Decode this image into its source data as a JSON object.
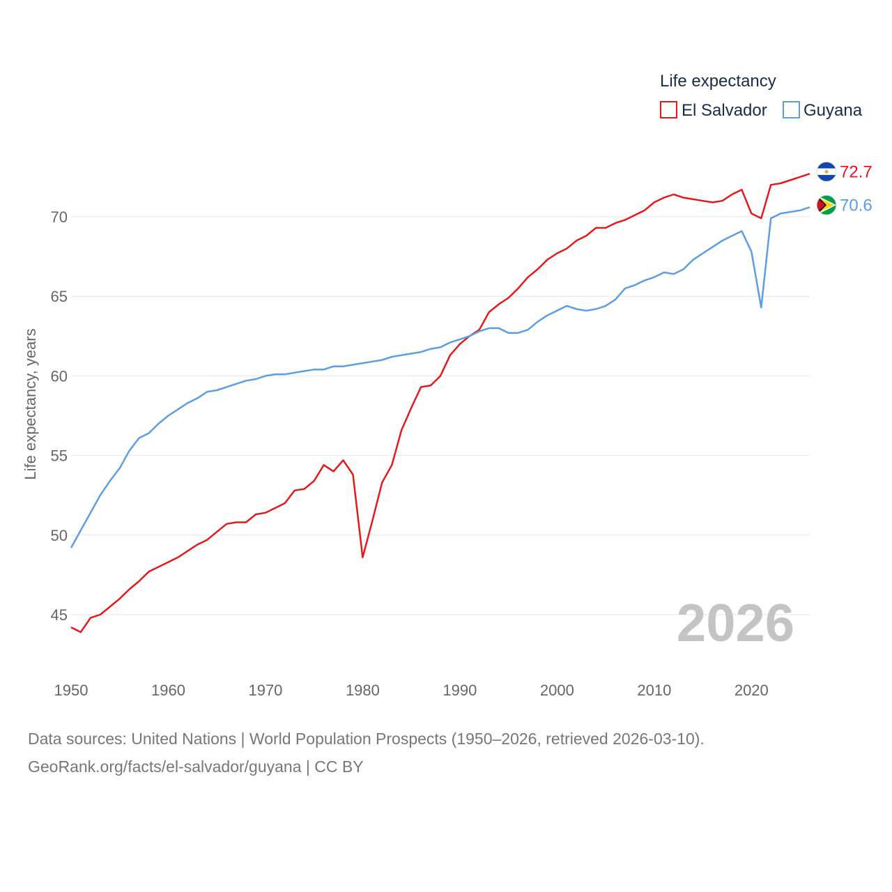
{
  "chart_data": {
    "type": "line",
    "title": "",
    "legend_title": "Life expectancy",
    "ylabel": "Life expectancy, years",
    "xlabel": "",
    "xlim": [
      1950,
      2026
    ],
    "ylim": [
      42.5,
      73.5
    ],
    "x_ticks": [
      1950,
      1960,
      1970,
      1980,
      1990,
      2000,
      2010,
      2020
    ],
    "y_ticks": [
      45,
      50,
      55,
      60,
      65,
      70
    ],
    "year_label": "2026",
    "series": [
      {
        "name": "El Salvador",
        "color": "#e31a1c",
        "end_label": "72.7",
        "flag": "el-salvador-flag-icon",
        "x": [
          1950,
          1951,
          1952,
          1953,
          1954,
          1955,
          1956,
          1957,
          1958,
          1959,
          1960,
          1961,
          1962,
          1963,
          1964,
          1965,
          1966,
          1967,
          1968,
          1969,
          1970,
          1971,
          1972,
          1973,
          1974,
          1975,
          1976,
          1977,
          1978,
          1979,
          1980,
          1981,
          1982,
          1983,
          1984,
          1985,
          1986,
          1987,
          1988,
          1989,
          1990,
          1991,
          1992,
          1993,
          1994,
          1995,
          1996,
          1997,
          1998,
          1999,
          2000,
          2001,
          2002,
          2003,
          2004,
          2005,
          2006,
          2007,
          2008,
          2009,
          2010,
          2011,
          2012,
          2013,
          2014,
          2015,
          2016,
          2017,
          2018,
          2019,
          2020,
          2021,
          2022,
          2023,
          2024,
          2025,
          2026
        ],
        "values": [
          44.2,
          43.9,
          44.8,
          45.0,
          45.5,
          46.0,
          46.6,
          47.1,
          47.7,
          48.0,
          48.3,
          48.6,
          49.0,
          49.4,
          49.7,
          50.2,
          50.7,
          50.8,
          50.8,
          51.3,
          51.4,
          51.7,
          52.0,
          52.8,
          52.9,
          53.4,
          54.4,
          54.0,
          54.7,
          53.8,
          48.6,
          50.9,
          53.3,
          54.4,
          56.6,
          58.0,
          59.3,
          59.4,
          60.0,
          61.3,
          62.0,
          62.5,
          62.9,
          64.0,
          64.5,
          64.9,
          65.5,
          66.2,
          66.7,
          67.3,
          67.7,
          68.0,
          68.5,
          68.8,
          69.3,
          69.3,
          69.6,
          69.8,
          70.1,
          70.4,
          70.9,
          71.2,
          71.4,
          71.2,
          71.1,
          71.0,
          70.9,
          71.0,
          71.4,
          71.7,
          70.2,
          69.9,
          72.0,
          72.1,
          72.3,
          72.5,
          72.7
        ]
      },
      {
        "name": "Guyana",
        "color": "#5b9ee1",
        "end_label": "70.6",
        "flag": "guyana-flag-icon",
        "x": [
          1950,
          1951,
          1952,
          1953,
          1954,
          1955,
          1956,
          1957,
          1958,
          1959,
          1960,
          1961,
          1962,
          1963,
          1964,
          1965,
          1966,
          1967,
          1968,
          1969,
          1970,
          1971,
          1972,
          1973,
          1974,
          1975,
          1976,
          1977,
          1978,
          1979,
          1980,
          1981,
          1982,
          1983,
          1984,
          1985,
          1986,
          1987,
          1988,
          1989,
          1990,
          1991,
          1992,
          1993,
          1994,
          1995,
          1996,
          1997,
          1998,
          1999,
          2000,
          2001,
          2002,
          2003,
          2004,
          2005,
          2006,
          2007,
          2008,
          2009,
          2010,
          2011,
          2012,
          2013,
          2014,
          2015,
          2016,
          2017,
          2018,
          2019,
          2020,
          2021,
          2022,
          2023,
          2024,
          2025,
          2026
        ],
        "values": [
          49.2,
          50.3,
          51.4,
          52.5,
          53.4,
          54.2,
          55.3,
          56.1,
          56.4,
          57.0,
          57.5,
          57.9,
          58.3,
          58.6,
          59.0,
          59.1,
          59.3,
          59.5,
          59.7,
          59.8,
          60.0,
          60.1,
          60.1,
          60.2,
          60.3,
          60.4,
          60.4,
          60.6,
          60.6,
          60.7,
          60.8,
          60.9,
          61.0,
          61.2,
          61.3,
          61.4,
          61.5,
          61.7,
          61.8,
          62.1,
          62.3,
          62.5,
          62.8,
          63.0,
          63.0,
          62.7,
          62.7,
          62.9,
          63.4,
          63.8,
          64.1,
          64.4,
          64.2,
          64.1,
          64.2,
          64.4,
          64.8,
          65.5,
          65.7,
          66.0,
          66.2,
          66.5,
          66.4,
          66.7,
          67.3,
          67.7,
          68.1,
          68.5,
          68.8,
          69.1,
          67.8,
          64.3,
          69.9,
          70.2,
          70.3,
          70.4,
          70.6
        ]
      }
    ]
  },
  "footer": {
    "source_line": "Data sources: United Nations | World Population Prospects (1950–2026, retrieved 2026-03-10).",
    "url_line": "GeoRank.org/facts/el-salvador/guyana | CC BY"
  }
}
